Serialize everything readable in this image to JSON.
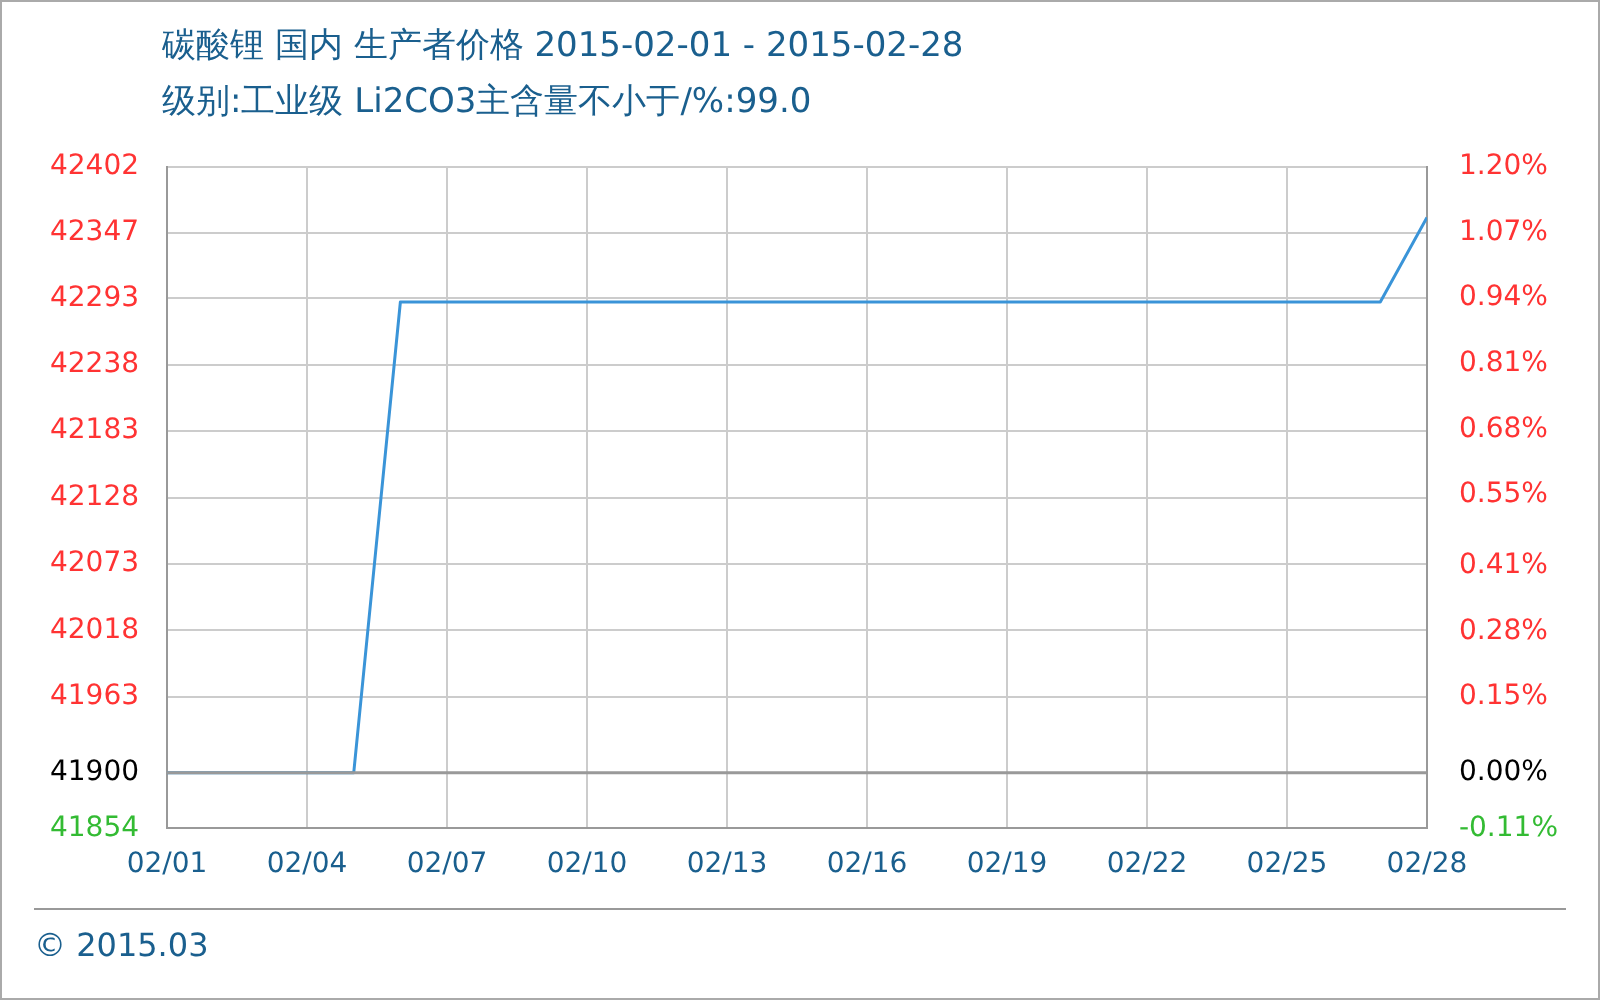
{
  "chart_data": {
    "type": "line",
    "title": "碳酸锂 国内 生产者价格 2015-02-01 - 2015-02-28",
    "subtitle": "级别:工业级 Li2CO3主含量不小于/%:99.0",
    "x": [
      "2015-02-01",
      "2015-02-05",
      "2015-02-06",
      "2015-02-27",
      "2015-02-28"
    ],
    "series": [
      {
        "color": "#3a94d8",
        "values": [
          41900,
          41900,
          42290,
          42290,
          42360
        ]
      }
    ],
    "xlim": [
      "2015-02-01",
      "2015-02-28"
    ],
    "xticks": [
      {
        "value": "2015-02-01",
        "label": "02/01"
      },
      {
        "value": "2015-02-04",
        "label": "02/04"
      },
      {
        "value": "2015-02-07",
        "label": "02/07"
      },
      {
        "value": "2015-02-10",
        "label": "02/10"
      },
      {
        "value": "2015-02-13",
        "label": "02/13"
      },
      {
        "value": "2015-02-16",
        "label": "02/16"
      },
      {
        "value": "2015-02-19",
        "label": "02/19"
      },
      {
        "value": "2015-02-22",
        "label": "02/22"
      },
      {
        "value": "2015-02-25",
        "label": "02/25"
      },
      {
        "value": "2015-02-28",
        "label": "02/28"
      }
    ],
    "ylim": [
      41854,
      42402
    ],
    "yticks": [
      41854,
      41900,
      41963,
      42018,
      42073,
      42128,
      42183,
      42238,
      42293,
      42347,
      42402
    ],
    "y2lim": [
      -0.11,
      1.2
    ],
    "y2ticks": [
      {
        "value": -0.11,
        "label": "-0.11%"
      },
      {
        "value": 0,
        "label": "0.00%"
      },
      {
        "value": 0.15,
        "label": "0.15%"
      },
      {
        "value": 0.28,
        "label": "0.28%"
      },
      {
        "value": 0.41,
        "label": "0.41%"
      },
      {
        "value": 0.55,
        "label": "0.55%"
      },
      {
        "value": 0.68,
        "label": "0.68%"
      },
      {
        "value": 0.81,
        "label": "0.81%"
      },
      {
        "value": 0.94,
        "label": "0.94%"
      },
      {
        "value": 1.07,
        "label": "1.07%"
      },
      {
        "value": 1.2,
        "label": "1.20%"
      }
    ],
    "ref_lines": [
      {
        "axis": "y",
        "value": 41900,
        "color": "#999999"
      }
    ],
    "annotations": [
      "© 2015.03"
    ],
    "grid": true,
    "legend": false,
    "marker": "none",
    "line_style": "solid"
  }
}
